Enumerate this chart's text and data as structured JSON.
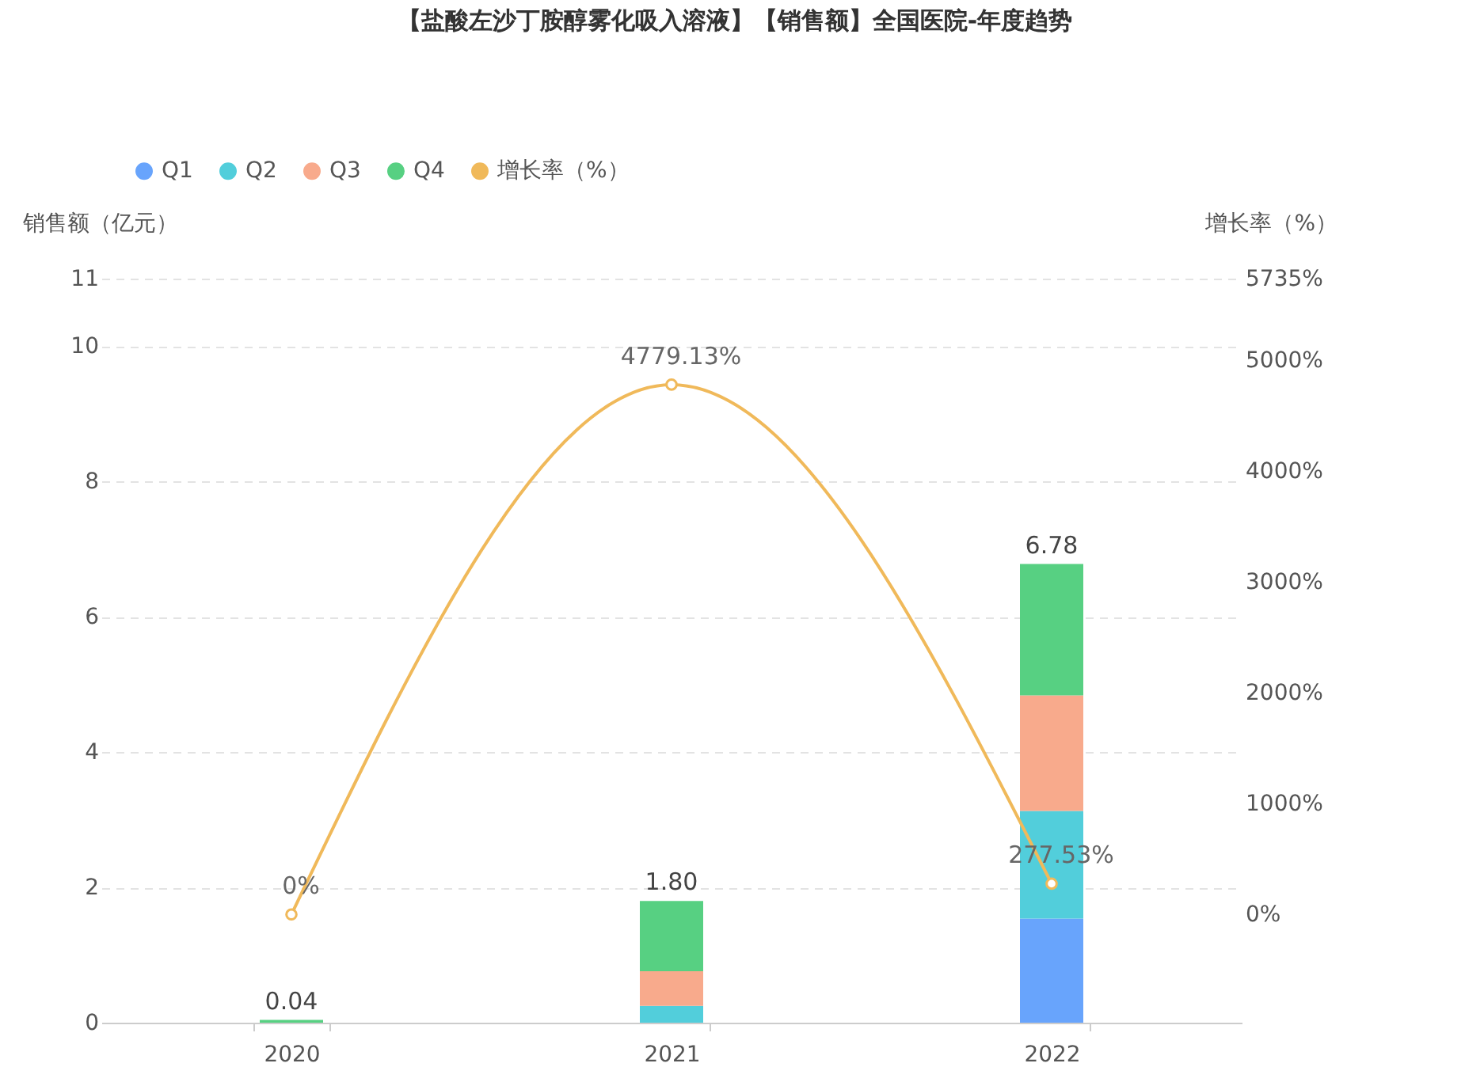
{
  "chart_data": {
    "type": "bar",
    "title": "【盐酸左沙丁胺醇雾化吸入溶液】【销售额】全国医院-年度趋势",
    "ylabel": "销售额（亿元）",
    "y2label": "增长率（%）",
    "categories": [
      "2020",
      "2021",
      "2022"
    ],
    "stacked": true,
    "series": [
      {
        "name": "Q1",
        "color": "#68a4fc",
        "values": [
          0,
          0,
          1.54
        ]
      },
      {
        "name": "Q2",
        "color": "#52cedb",
        "values": [
          0,
          0.25,
          1.59
        ]
      },
      {
        "name": "Q3",
        "color": "#f8aa8c",
        "values": [
          0,
          0.51,
          1.71
        ]
      },
      {
        "name": "Q4",
        "color": "#57d082",
        "values": [
          0.04,
          1.04,
          1.94
        ]
      },
      {
        "name": "增长率（%）",
        "type": "line",
        "axis": "y2",
        "color": "#f0b95a",
        "values": [
          0,
          4779.13,
          277.53
        ],
        "value_labels": [
          "0%",
          "4779.13%",
          "277.53%"
        ],
        "marker": "circle"
      }
    ],
    "totals": [
      "0.04",
      "1.80",
      "6.78"
    ],
    "ylim": [
      0,
      11
    ],
    "yticks": [
      0,
      2,
      4,
      6,
      8,
      10,
      11
    ],
    "y2lim": [
      -976,
      5735
    ],
    "y2ticks": [
      {
        "value": 0,
        "label": "0%"
      },
      {
        "value": 1000,
        "label": "1000%"
      },
      {
        "value": 2000,
        "label": "2000%"
      },
      {
        "value": 3000,
        "label": "3000%"
      },
      {
        "value": 4000,
        "label": "4000%"
      },
      {
        "value": 5000,
        "label": "5000%"
      },
      {
        "value": 5735,
        "label": "5735%"
      }
    ],
    "grid": "y",
    "legend": "top left"
  }
}
